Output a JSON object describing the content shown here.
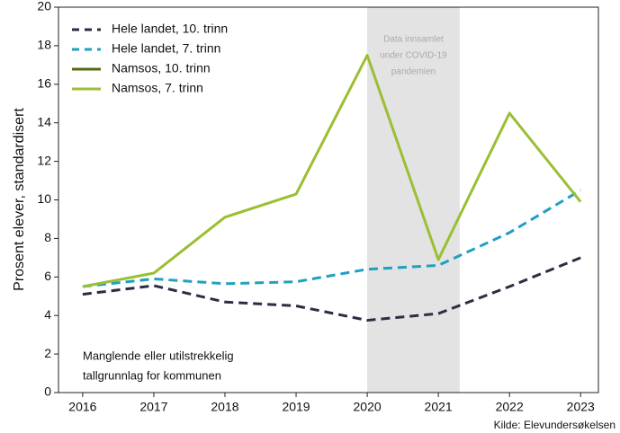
{
  "chart_data": {
    "type": "line",
    "ylabel": "Prosent elever, standardisert",
    "x": [
      2016,
      2017,
      2018,
      2019,
      2020,
      2021,
      2022,
      2023
    ],
    "xlim": [
      2015.66,
      2023.25
    ],
    "xticks": [
      2016,
      2017,
      2018,
      2019,
      2020,
      2021,
      2022,
      2023
    ],
    "ylim": [
      0,
      20
    ],
    "yticks": [
      0,
      2,
      4,
      6,
      8,
      10,
      12,
      14,
      16,
      18,
      20
    ],
    "legend": "upper left",
    "series": [
      {
        "name": "Hele landet, 10. trinn",
        "color": "#2b2d42",
        "dash": true,
        "values": [
          5.1,
          5.55,
          4.7,
          4.5,
          3.75,
          4.1,
          5.5,
          7.0
        ]
      },
      {
        "name": "Hele landet, 7. trinn",
        "color": "#1fa0c0",
        "dash": true,
        "values": [
          5.5,
          5.9,
          5.65,
          5.75,
          6.4,
          6.6,
          8.3,
          10.5
        ]
      },
      {
        "name": "Namsos, 10. trinn",
        "color": "#4f6b12",
        "dash": false,
        "values": [
          null,
          null,
          null,
          null,
          null,
          null,
          null,
          null
        ]
      },
      {
        "name": "Namsos, 7. trinn",
        "color": "#9bbf32",
        "dash": false,
        "values": [
          5.5,
          6.2,
          9.1,
          10.3,
          17.5,
          6.9,
          14.5,
          9.9
        ]
      }
    ],
    "shaded_region": {
      "x": [
        2020,
        2021.3
      ],
      "color": "#e3e3e3",
      "label": [
        "Data innsamlet",
        "under COVID-19",
        "pandemien"
      ]
    },
    "note": [
      "Manglende eller utilstrekkelig",
      "tallgrunnlag for kommunen"
    ],
    "source": "Kilde: Elevundersøkelsen"
  }
}
